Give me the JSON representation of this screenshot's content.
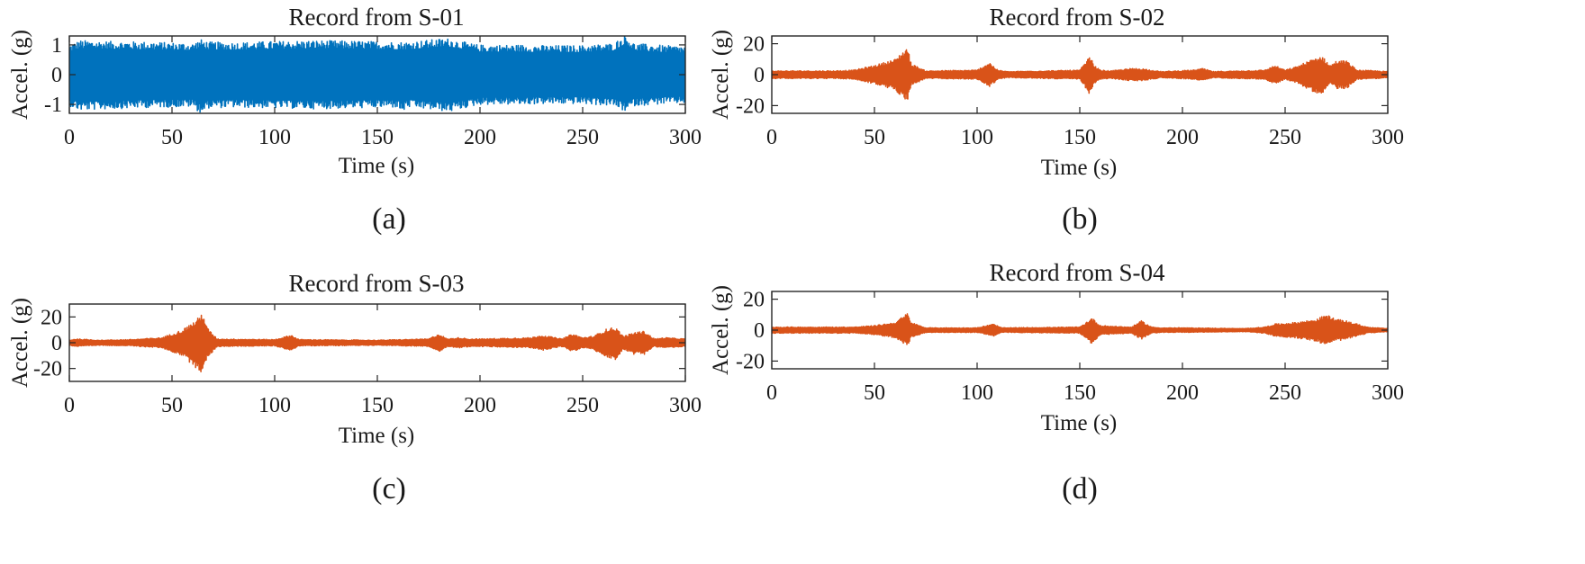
{
  "figure": {
    "captions": [
      "(a)",
      "(b)",
      "(c)",
      "(d)"
    ]
  },
  "chart_data": [
    {
      "type": "line",
      "title": "Record from S-01",
      "xlabel": "Time (s)",
      "ylabel": "Accel. (g)",
      "xlim": [
        0,
        300
      ],
      "ylim": [
        -1.3,
        1.3
      ],
      "xticks": [
        0,
        50,
        100,
        150,
        200,
        250,
        300
      ],
      "yticks": [
        -1,
        0,
        1
      ],
      "color": "#0072BD",
      "grid": false,
      "envelope": {
        "description_units": "amplitude (g) of signal envelope vs time (s)",
        "t": [
          0,
          5,
          20,
          40,
          60,
          64,
          68,
          80,
          100,
          120,
          140,
          160,
          162,
          165,
          180,
          185,
          195,
          200,
          220,
          230,
          250,
          265,
          271,
          275,
          290,
          300
        ],
        "upper": [
          1.0,
          1.15,
          1.12,
          1.1,
          1.05,
          1.18,
          1.1,
          1.08,
          1.12,
          1.15,
          1.13,
          1.1,
          1.1,
          1.1,
          1.2,
          1.22,
          1.05,
          1.0,
          1.0,
          0.98,
          0.98,
          1.05,
          1.35,
          1.05,
          0.98,
          0.95
        ],
        "lower": [
          -1.05,
          -1.2,
          -1.15,
          -1.1,
          -1.08,
          -1.3,
          -1.12,
          -1.1,
          -1.12,
          -1.15,
          -1.12,
          -1.1,
          -1.28,
          -1.1,
          -1.2,
          -1.25,
          -1.08,
          -1.0,
          -1.0,
          -0.98,
          -0.98,
          -1.05,
          -1.25,
          -1.05,
          -0.98,
          -0.95
        ]
      }
    },
    {
      "type": "line",
      "title": "Record from S-02",
      "xlabel": "Time (s)",
      "ylabel": "Accel. (g)",
      "xlim": [
        0,
        300
      ],
      "ylim": [
        -25,
        25
      ],
      "xticks": [
        0,
        50,
        100,
        150,
        200,
        250,
        300
      ],
      "yticks": [
        -20,
        0,
        20
      ],
      "color": "#D95319",
      "grid": false,
      "envelope": {
        "description_units": "amplitude (g) of signal envelope vs time (s)",
        "t": [
          0,
          10,
          30,
          40,
          50,
          60,
          66,
          68,
          75,
          100,
          106,
          110,
          115,
          150,
          155,
          157,
          160,
          165,
          175,
          180,
          185,
          190,
          205,
          210,
          215,
          240,
          245,
          250,
          255,
          265,
          268,
          272,
          275,
          280,
          285,
          295,
          300
        ],
        "upper": [
          2.5,
          2.5,
          2.5,
          3,
          6,
          10,
          18,
          7,
          2.5,
          3,
          8,
          3,
          2,
          3,
          12,
          6,
          3,
          2.5,
          4,
          4,
          3,
          2,
          3,
          4,
          2,
          3,
          6,
          3,
          5,
          11,
          12,
          6,
          9,
          9,
          3,
          2.5,
          2
        ],
        "lower": [
          -2.5,
          -2.5,
          -2.5,
          -3,
          -6,
          -10,
          -17,
          -7,
          -2.5,
          -3,
          -8,
          -3,
          -2,
          -3,
          -13,
          -6,
          -3,
          -2.5,
          -4,
          -4,
          -3,
          -2,
          -3,
          -4,
          -2,
          -3,
          -6,
          -3,
          -5,
          -12,
          -12,
          -6,
          -9,
          -9,
          -3,
          -2.5,
          -2
        ]
      }
    },
    {
      "type": "line",
      "title": "Record from S-03",
      "xlabel": "Time (s)",
      "ylabel": "Accel. (g)",
      "xlim": [
        0,
        300
      ],
      "ylim": [
        -30,
        30
      ],
      "xticks": [
        0,
        50,
        100,
        150,
        200,
        250,
        300
      ],
      "yticks": [
        -20,
        0,
        20
      ],
      "color": "#D95319",
      "grid": false,
      "envelope": {
        "description_units": "amplitude (g) of signal envelope vs time (s)",
        "t": [
          0,
          3,
          15,
          30,
          45,
          55,
          62,
          65,
          67,
          72,
          100,
          108,
          112,
          150,
          175,
          180,
          184,
          190,
          195,
          200,
          225,
          230,
          240,
          245,
          250,
          255,
          262,
          266,
          270,
          275,
          280,
          285,
          290,
          300
        ],
        "upper": [
          2,
          3,
          2,
          2.5,
          4,
          10,
          18,
          24,
          12,
          3,
          2.5,
          6,
          2.5,
          2,
          3,
          7,
          3,
          4,
          3,
          3,
          4,
          6,
          3,
          7,
          4,
          5,
          11,
          12,
          5,
          8,
          9,
          3,
          4,
          3
        ],
        "lower": [
          -2,
          -3,
          -2,
          -2.5,
          -4,
          -10,
          -20,
          -24,
          -12,
          -3,
          -2.5,
          -6,
          -2.5,
          -2,
          -3,
          -7,
          -3,
          -4,
          -3,
          -3,
          -4,
          -6,
          -3,
          -7,
          -4,
          -5,
          -12,
          -13,
          -5,
          -9,
          -9,
          -3,
          -4,
          -3
        ]
      }
    },
    {
      "type": "line",
      "title": "Record from S-04",
      "xlabel": "Time (s)",
      "ylabel": "Accel. (g)",
      "xlim": [
        0,
        300
      ],
      "ylim": [
        -25,
        25
      ],
      "xticks": [
        0,
        50,
        100,
        150,
        200,
        250,
        300
      ],
      "yticks": [
        -20,
        0,
        20
      ],
      "color": "#D95319",
      "grid": false,
      "envelope": {
        "description_units": "amplitude (g) of signal envelope vs time (s)",
        "t": [
          0,
          10,
          40,
          50,
          60,
          66,
          68,
          75,
          100,
          108,
          112,
          150,
          156,
          160,
          175,
          180,
          185,
          190,
          200,
          230,
          240,
          245,
          255,
          265,
          270,
          275,
          280,
          290,
          300
        ],
        "upper": [
          2,
          2,
          2,
          3,
          5,
          11,
          5,
          1.5,
          1.5,
          4,
          1.5,
          2,
          8,
          3,
          2,
          6,
          2,
          1.5,
          1.5,
          1,
          2,
          4,
          5,
          7,
          10,
          7,
          6,
          2,
          1
        ],
        "lower": [
          -2,
          -2,
          -2,
          -3,
          -5,
          -10,
          -5,
          -1.5,
          -1.5,
          -4,
          -1.5,
          -2,
          -9,
          -3,
          -2,
          -6,
          -2,
          -1.5,
          -1.5,
          -1,
          -2,
          -4,
          -5,
          -7,
          -10,
          -7,
          -6,
          -2,
          -1
        ]
      }
    }
  ]
}
